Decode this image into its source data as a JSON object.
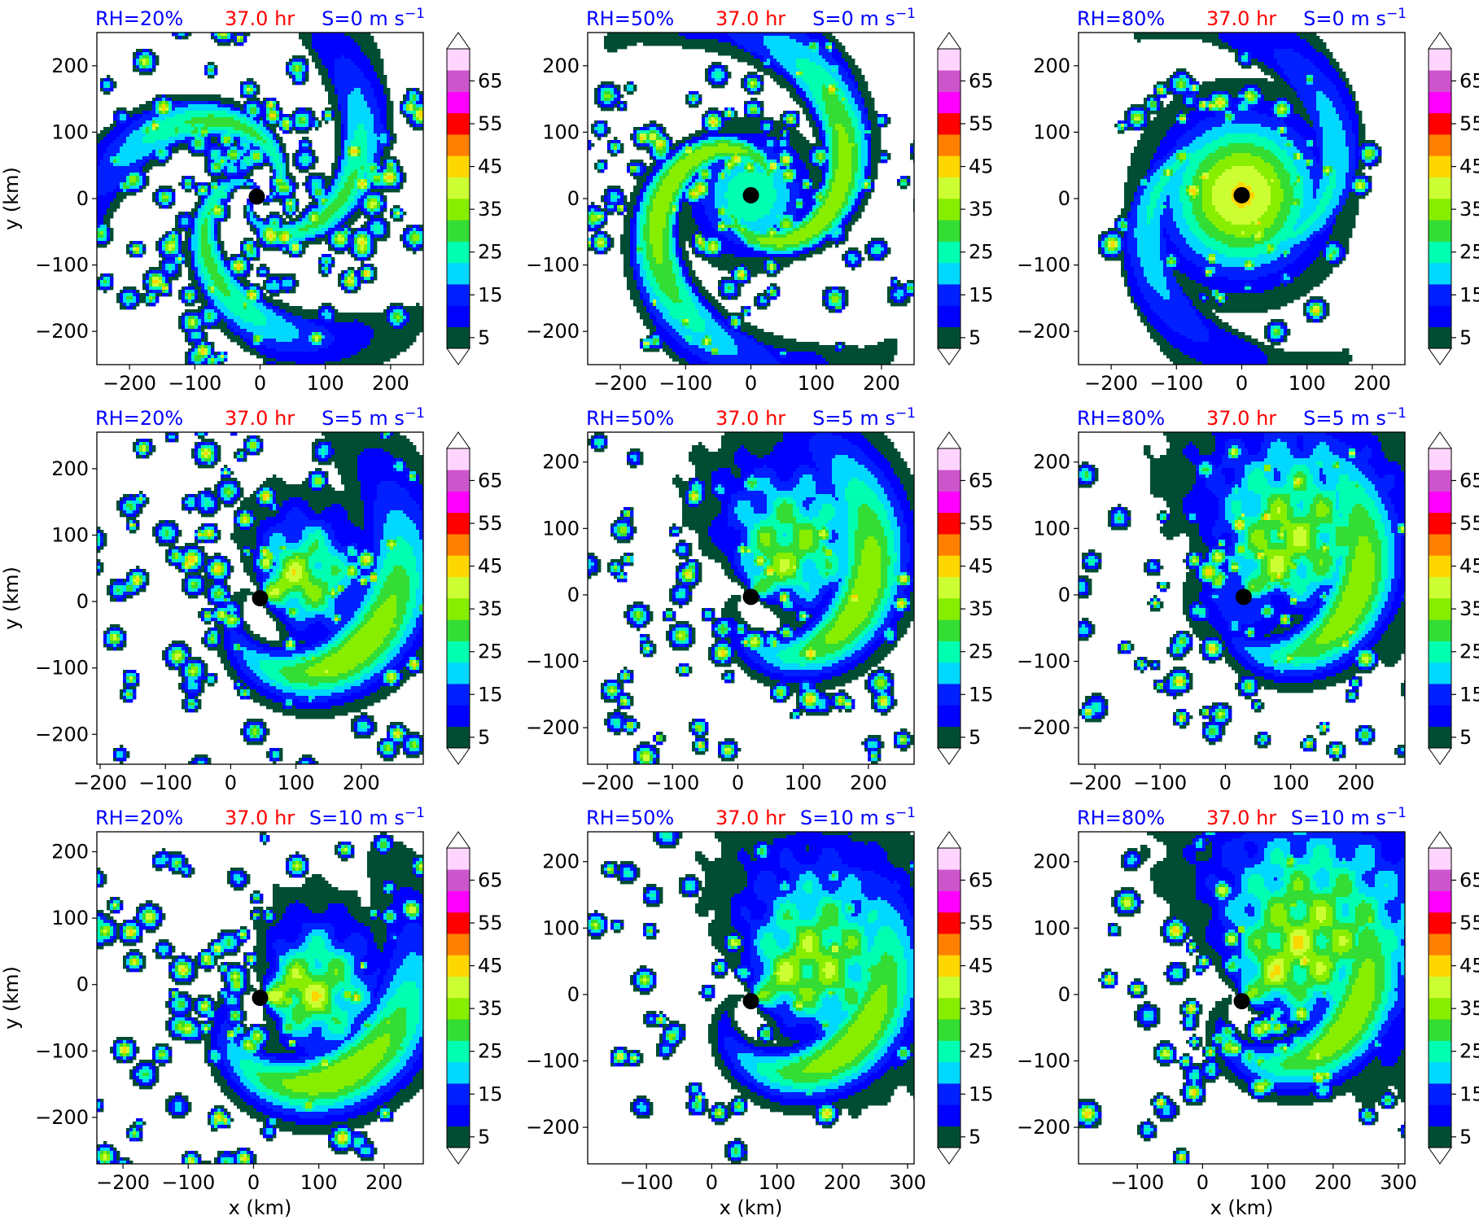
{
  "chart_data": {
    "type": "heatmap",
    "layout": "3x3 grid",
    "colors": {
      "rh_label": "#0000ff",
      "time_label": "#ff0000",
      "shear_label": "#0000ff",
      "center_marker": "#000000"
    },
    "colorbar": {
      "ticks": [
        "5",
        "15",
        "25",
        "35",
        "45",
        "55",
        "65"
      ],
      "levels": [
        5,
        10,
        15,
        20,
        25,
        30,
        35,
        40,
        45,
        50,
        55,
        60,
        65,
        70
      ],
      "extend": "both",
      "under_color": "#ffffff",
      "over_color": "#ffffff",
      "band_colors": [
        "#004d33",
        "#0000ff",
        "#0020ff",
        "#00d8ff",
        "#00ffb0",
        "#33dd33",
        "#88ee00",
        "#ccff33",
        "#ffd700",
        "#ff8000",
        "#ff0000",
        "#ff00ff",
        "#cc55cc",
        "#ffd5ff"
      ]
    },
    "panels": [
      {
        "row": 0,
        "col": 0,
        "rh": "RH=20%",
        "time": "37.0 hr",
        "shear": "S=0 m s",
        "shear_exp": "−1",
        "xlim": [
          -250,
          250
        ],
        "ylim": [
          -250,
          250
        ],
        "xticks": [
          "−200",
          "−100",
          "0",
          "100",
          "200"
        ],
        "xtick_vals": [
          -200,
          -100,
          0,
          100,
          200
        ],
        "yticks": [
          "200",
          "100",
          "0",
          "−100",
          "−200"
        ],
        "ytick_vals": [
          200,
          100,
          0,
          -100,
          -200
        ],
        "ylabel": "y (km)",
        "xlabel": "",
        "center": [
          -5,
          3
        ],
        "pattern": "ring-dry",
        "seed": 11
      },
      {
        "row": 0,
        "col": 1,
        "rh": "RH=50%",
        "time": "37.0 hr",
        "shear": "S=0 m s",
        "shear_exp": "−1",
        "xlim": [
          -250,
          250
        ],
        "ylim": [
          -250,
          250
        ],
        "xticks": [
          "−200",
          "−100",
          "0",
          "100",
          "200"
        ],
        "xtick_vals": [
          -200,
          -100,
          0,
          100,
          200
        ],
        "yticks": [
          "200",
          "100",
          "0",
          "−100",
          "−200"
        ],
        "ytick_vals": [
          200,
          100,
          0,
          -100,
          -200
        ],
        "ylabel": "",
        "xlabel": "",
        "center": [
          0,
          5
        ],
        "pattern": "spiral-mid",
        "seed": 23
      },
      {
        "row": 0,
        "col": 2,
        "rh": "RH=80%",
        "time": "37.0 hr",
        "shear": "S=0 m s",
        "shear_exp": "−1",
        "xlim": [
          -250,
          250
        ],
        "ylim": [
          -250,
          250
        ],
        "xticks": [
          "−200",
          "−100",
          "0",
          "100",
          "200"
        ],
        "xtick_vals": [
          -200,
          -100,
          0,
          100,
          200
        ],
        "yticks": [
          "200",
          "100",
          "0",
          "−100",
          "−200"
        ],
        "ytick_vals": [
          200,
          100,
          0,
          -100,
          -200
        ],
        "ylabel": "",
        "xlabel": "",
        "center": [
          0,
          5
        ],
        "pattern": "compact",
        "seed": 37
      },
      {
        "row": 1,
        "col": 0,
        "rh": "RH=20%",
        "time": "37.0 hr",
        "shear": "S=5 m s",
        "shear_exp": "−1",
        "xlim": [
          -205,
          295
        ],
        "ylim": [
          -245,
          255
        ],
        "xticks": [
          "−200",
          "−100",
          "0",
          "100",
          "200"
        ],
        "xtick_vals": [
          -200,
          -100,
          0,
          100,
          200
        ],
        "yticks": [
          "200",
          "100",
          "0",
          "−100",
          "−200"
        ],
        "ytick_vals": [
          200,
          100,
          0,
          -100,
          -200
        ],
        "ylabel": "y (km)",
        "xlabel": "",
        "center": [
          45,
          5
        ],
        "pattern": "sheared-dry",
        "seed": 41
      },
      {
        "row": 1,
        "col": 1,
        "rh": "RH=50%",
        "time": "37.0 hr",
        "shear": "S=5 m s",
        "shear_exp": "−1",
        "xlim": [
          -230,
          270
        ],
        "ylim": [
          -255,
          245
        ],
        "xticks": [
          "−200",
          "−100",
          "0",
          "100",
          "200"
        ],
        "xtick_vals": [
          -200,
          -100,
          0,
          100,
          200
        ],
        "yticks": [
          "200",
          "100",
          "0",
          "−100",
          "−200"
        ],
        "ytick_vals": [
          200,
          100,
          0,
          -100,
          -200
        ],
        "ylabel": "",
        "xlabel": "",
        "center": [
          20,
          -3
        ],
        "pattern": "sheared-mid",
        "seed": 53
      },
      {
        "row": 1,
        "col": 2,
        "rh": "RH=80%",
        "time": "37.0 hr",
        "shear": "S=5 m s",
        "shear_exp": "−1",
        "xlim": [
          -225,
          275
        ],
        "ylim": [
          -255,
          245
        ],
        "xticks": [
          "−200",
          "−100",
          "0",
          "100",
          "200"
        ],
        "xtick_vals": [
          -200,
          -100,
          0,
          100,
          200
        ],
        "yticks": [
          "200",
          "100",
          "0",
          "−100",
          "−200"
        ],
        "ytick_vals": [
          200,
          100,
          0,
          -100,
          -200
        ],
        "ylabel": "",
        "xlabel": "",
        "center": [
          28,
          -3
        ],
        "pattern": "sheared-moist",
        "seed": 67
      },
      {
        "row": 2,
        "col": 0,
        "rh": "RH=20%",
        "time": "37.0 hr",
        "shear": "S=10 m s",
        "shear_exp": "−1",
        "xlim": [
          -240,
          260
        ],
        "ylim": [
          -270,
          230
        ],
        "xticks": [
          "−200",
          "−100",
          "0",
          "100",
          "200"
        ],
        "xtick_vals": [
          -200,
          -100,
          0,
          100,
          200
        ],
        "yticks": [
          "200",
          "100",
          "0",
          "−100",
          "−200"
        ],
        "ytick_vals": [
          200,
          100,
          0,
          -100,
          -200
        ],
        "ylabel": "y (km)",
        "xlabel": "x (km)",
        "center": [
          10,
          -20
        ],
        "pattern": "strong-dry",
        "seed": 71
      },
      {
        "row": 2,
        "col": 1,
        "rh": "RH=50%",
        "time": "37.0 hr",
        "shear": "S=10 m s",
        "shear_exp": "−1",
        "xlim": [
          -190,
          310
        ],
        "ylim": [
          -255,
          245
        ],
        "xticks": [
          "−100",
          "0",
          "100",
          "200",
          "300"
        ],
        "xtick_vals": [
          -100,
          0,
          100,
          200,
          300
        ],
        "yticks": [
          "200",
          "100",
          "0",
          "−100",
          "−200"
        ],
        "ytick_vals": [
          200,
          100,
          0,
          -100,
          -200
        ],
        "ylabel": "",
        "xlabel": "x (km)",
        "center": [
          60,
          -10
        ],
        "pattern": "strong-mid",
        "seed": 83
      },
      {
        "row": 2,
        "col": 2,
        "rh": "RH=80%",
        "time": "37.0 hr",
        "shear": "S=10 m s",
        "shear_exp": "−1",
        "xlim": [
          -190,
          310
        ],
        "ylim": [
          -255,
          245
        ],
        "xticks": [
          "−100",
          "0",
          "100",
          "200",
          "300"
        ],
        "xtick_vals": [
          -100,
          0,
          100,
          200,
          300
        ],
        "yticks": [
          "200",
          "100",
          "0",
          "−100",
          "−200"
        ],
        "ytick_vals": [
          200,
          100,
          0,
          -100,
          -200
        ],
        "ylabel": "",
        "xlabel": "x (km)",
        "center": [
          60,
          -10
        ],
        "pattern": "strong-moist",
        "seed": 97
      }
    ]
  }
}
